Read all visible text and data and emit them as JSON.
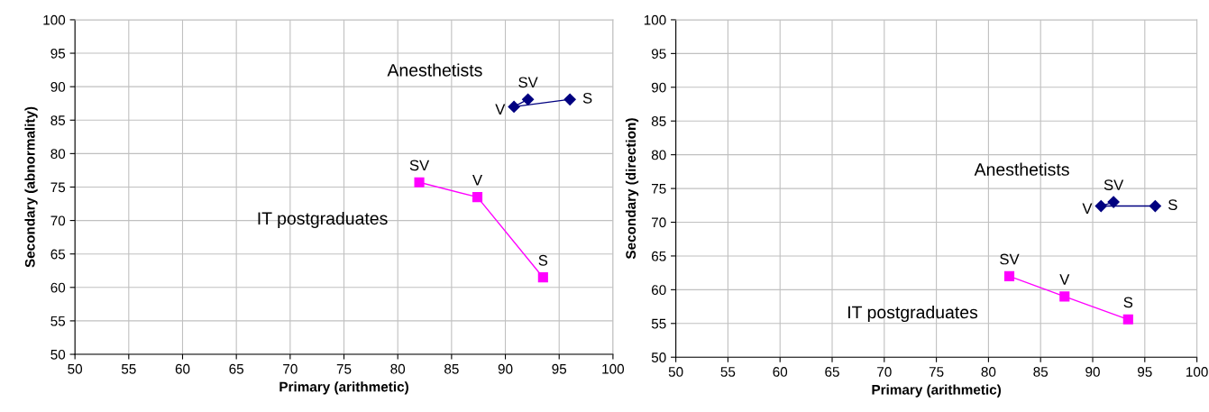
{
  "chart_data": [
    {
      "type": "line",
      "xlabel": "Primary (arithmetic)",
      "ylabel": "Secondary (abnormality)",
      "xlim": [
        50,
        100
      ],
      "ylim": [
        50,
        100
      ],
      "xticks": [
        50,
        55,
        60,
        65,
        70,
        75,
        80,
        85,
        90,
        95,
        100
      ],
      "yticks": [
        50,
        55,
        60,
        65,
        70,
        75,
        80,
        85,
        90,
        95,
        100
      ],
      "grid": true,
      "series": [
        {
          "name": "Anesthetists",
          "color": "#000080",
          "marker": "diamond",
          "x": [
            92.1,
            90.8,
            96.0
          ],
          "values": [
            88.1,
            87.0,
            88.1
          ]
        },
        {
          "name": "IT postgraduates",
          "color": "#ff00ff",
          "marker": "square",
          "x": [
            82.0,
            87.4,
            93.5
          ],
          "values": [
            75.7,
            73.5,
            61.5
          ]
        }
      ],
      "annotations": [
        {
          "text": "SV",
          "x": 92.1,
          "y": 88.1
        },
        {
          "text": "V",
          "x": 90.8,
          "y": 87.0
        },
        {
          "text": "S",
          "x": 96.0,
          "y": 88.1
        },
        {
          "text": "SV",
          "x": 82.0,
          "y": 75.7
        },
        {
          "text": "V",
          "x": 87.4,
          "y": 73.5
        },
        {
          "text": "S",
          "x": 93.5,
          "y": 61.5
        }
      ]
    },
    {
      "type": "line",
      "xlabel": "Primary (arithmetic)",
      "ylabel": "Secondary (direction)",
      "xlim": [
        50,
        100
      ],
      "ylim": [
        50,
        100
      ],
      "xticks": [
        50,
        55,
        60,
        65,
        70,
        75,
        80,
        85,
        90,
        95,
        100
      ],
      "yticks": [
        50,
        55,
        60,
        65,
        70,
        75,
        80,
        85,
        90,
        95,
        100
      ],
      "grid": true,
      "series": [
        {
          "name": "Anesthetists",
          "color": "#000080",
          "marker": "diamond",
          "x": [
            92.0,
            90.8,
            96.0
          ],
          "values": [
            73.0,
            72.4,
            72.4
          ]
        },
        {
          "name": "IT postgraduates",
          "color": "#ff00ff",
          "marker": "square",
          "x": [
            82.0,
            87.3,
            93.4
          ],
          "values": [
            62.0,
            59.0,
            55.6
          ]
        }
      ],
      "annotations": [
        {
          "text": "SV",
          "x": 92.0,
          "y": 73.0
        },
        {
          "text": "V",
          "x": 90.8,
          "y": 72.4
        },
        {
          "text": "S",
          "x": 96.0,
          "y": 72.4
        },
        {
          "text": "SV",
          "x": 82.0,
          "y": 62.0
        },
        {
          "text": "V",
          "x": 87.3,
          "y": 59.0
        },
        {
          "text": "S",
          "x": 93.4,
          "y": 55.6
        }
      ]
    }
  ]
}
